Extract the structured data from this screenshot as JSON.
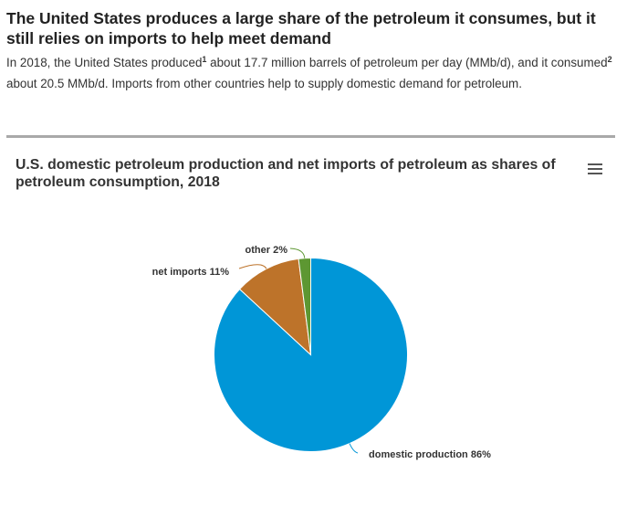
{
  "header": {
    "title": "The United States produces a large share of the petroleum it consumes, but it still relies on imports to help meet demand",
    "intro_part1": "In 2018, the United States produced",
    "footnote1": "1",
    "intro_part2": " about 17.7 million barrels of petroleum per day (MMb/d), and it consumed",
    "footnote2": "2",
    "intro_part3": " about 20.5 MMb/d. Imports from other countries help to supply domestic demand for petroleum."
  },
  "chart_menu": {
    "icon": "hamburger-menu-icon"
  },
  "chart_data": {
    "type": "pie",
    "title": "U.S. domestic petroleum production and net imports of petroleum as shares of petroleum consumption, 2018",
    "slices": [
      {
        "label": "domestic production 86%",
        "value": 86,
        "color": "#0096d7"
      },
      {
        "label": "net imports 11%",
        "value": 11,
        "color": "#bd732a"
      },
      {
        "label": "other 2%",
        "value": 2,
        "color": "#5d9732"
      }
    ]
  }
}
